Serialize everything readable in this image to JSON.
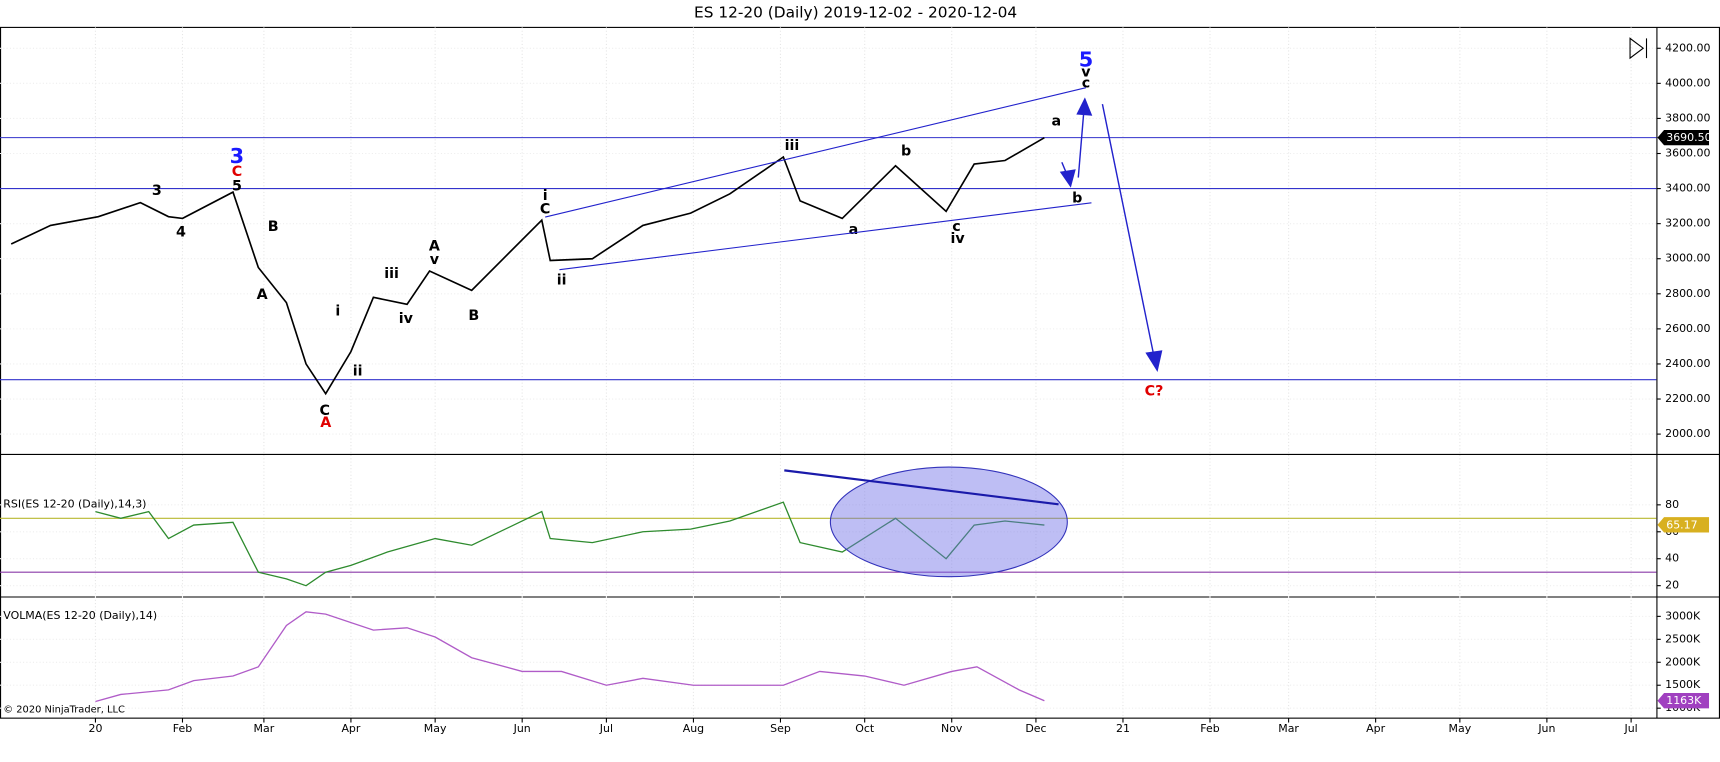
{
  "chart_data": [
    {
      "type": "line",
      "title": "ES 12-20 (Daily)  2019-12-02 - 2020-12-04",
      "color": "#000000",
      "x": [
        "2019-12-02",
        "2019-12-16",
        "2020-01-02",
        "2020-01-17",
        "2020-01-27",
        "2020-02-01",
        "2020-02-19",
        "2020-02-28",
        "2020-03-09",
        "2020-03-16",
        "2020-03-23",
        "2020-04-01",
        "2020-04-09",
        "2020-04-21",
        "2020-04-29",
        "2020-05-14",
        "2020-06-08",
        "2020-06-11",
        "2020-06-26",
        "2020-07-14",
        "2020-07-31",
        "2020-08-14",
        "2020-09-02",
        "2020-09-08",
        "2020-09-23",
        "2020-10-12",
        "2020-10-30",
        "2020-11-09",
        "2020-11-20",
        "2020-12-04"
      ],
      "values": [
        3084,
        3190,
        3240,
        3320,
        3240,
        3230,
        3380,
        2950,
        2750,
        2400,
        2230,
        2470,
        2780,
        2740,
        2930,
        2820,
        3220,
        2990,
        3000,
        3190,
        3260,
        3370,
        3580,
        3330,
        3230,
        3530,
        3270,
        3540,
        3560,
        3690
      ],
      "xlim": [
        "2019-11-28",
        "2021-07-10"
      ],
      "xticks": [
        {
          "value": "2020-01-01",
          "label": "20"
        },
        {
          "value": "2020-02-01",
          "label": "Feb"
        },
        {
          "value": "2020-03-01",
          "label": "Mar"
        },
        {
          "value": "2020-04-01",
          "label": "Apr"
        },
        {
          "value": "2020-05-01",
          "label": "May"
        },
        {
          "value": "2020-06-01",
          "label": "Jun"
        },
        {
          "value": "2020-07-01",
          "label": "Jul"
        },
        {
          "value": "2020-08-01",
          "label": "Aug"
        },
        {
          "value": "2020-09-01",
          "label": "Sep"
        },
        {
          "value": "2020-10-01",
          "label": "Oct"
        },
        {
          "value": "2020-11-01",
          "label": "Nov"
        },
        {
          "value": "2020-12-01",
          "label": "Dec"
        },
        {
          "value": "2021-01-01",
          "label": "21"
        },
        {
          "value": "2021-02-01",
          "label": "Feb"
        },
        {
          "value": "2021-03-01",
          "label": "Mar"
        },
        {
          "value": "2021-04-01",
          "label": "Apr"
        },
        {
          "value": "2021-05-01",
          "label": "May"
        },
        {
          "value": "2021-06-01",
          "label": "Jun"
        },
        {
          "value": "2021-07-01",
          "label": "Jul"
        }
      ],
      "ylim": [
        1887,
        4319
      ],
      "yticks": [
        {
          "value": 2000,
          "label": "2000.00"
        },
        {
          "value": 2200,
          "label": "2200.00"
        },
        {
          "value": 2400,
          "label": "2400.00"
        },
        {
          "value": 2600,
          "label": "2600.00"
        },
        {
          "value": 2800,
          "label": "2800.00"
        },
        {
          "value": 3000,
          "label": "3000.00"
        },
        {
          "value": 3200,
          "label": "3200.00"
        },
        {
          "value": 3400,
          "label": "3400.00"
        },
        {
          "value": 3600,
          "label": "3600.00"
        },
        {
          "value": 3800,
          "label": "3800.00"
        },
        {
          "value": 4000,
          "label": "4000.00"
        },
        {
          "value": 4200,
          "label": "4200.00"
        }
      ],
      "last": {
        "value": 3690.5,
        "label": "3690.50"
      },
      "hlines": [
        3400,
        2310
      ],
      "annotations": [
        {
          "text": "3",
          "color": "#000000"
        },
        {
          "text": "4",
          "color": "#000000"
        },
        {
          "text": "3",
          "color": "#1a1aff"
        },
        {
          "text": "C",
          "color": "#e00000"
        },
        {
          "text": "5",
          "color": "#000000"
        },
        {
          "text": "B",
          "color": "#000000"
        },
        {
          "text": "A",
          "color": "#000000"
        },
        {
          "text": "i",
          "color": "#000000"
        },
        {
          "text": "ii",
          "color": "#000000"
        },
        {
          "text": "C",
          "color": "#000000"
        },
        {
          "text": "A",
          "color": "#e00000"
        },
        {
          "text": "iii",
          "color": "#000000"
        },
        {
          "text": "iv",
          "color": "#000000"
        },
        {
          "text": "A",
          "color": "#000000"
        },
        {
          "text": "v",
          "color": "#000000"
        },
        {
          "text": "B",
          "color": "#000000"
        },
        {
          "text": "i",
          "color": "#000000"
        },
        {
          "text": "C",
          "color": "#000000"
        },
        {
          "text": "ii",
          "color": "#000000"
        },
        {
          "text": "iii",
          "color": "#000000"
        },
        {
          "text": "a",
          "color": "#000000"
        },
        {
          "text": "b",
          "color": "#000000"
        },
        {
          "text": "c",
          "color": "#000000"
        },
        {
          "text": "iv",
          "color": "#000000"
        },
        {
          "text": "a",
          "color": "#000000"
        },
        {
          "text": "b",
          "color": "#000000"
        },
        {
          "text": "5",
          "color": "#1a1aff"
        },
        {
          "text": "v",
          "color": "#000000"
        },
        {
          "text": "c",
          "color": "#000000"
        },
        {
          "text": "C?",
          "color": "#e00000"
        }
      ],
      "copyright": "© 2020 NinjaTrader, LLC"
    },
    {
      "type": "line",
      "label": "RSI(ES 12-20 (Daily),14,3)",
      "color": "#2e8b2e",
      "x": [
        "2020-01-01",
        "2020-01-10",
        "2020-01-20",
        "2020-01-27",
        "2020-02-05",
        "2020-02-19",
        "2020-02-28",
        "2020-03-09",
        "2020-03-16",
        "2020-03-23",
        "2020-04-01",
        "2020-04-14",
        "2020-05-01",
        "2020-05-14",
        "2020-06-08",
        "2020-06-11",
        "2020-06-26",
        "2020-07-14",
        "2020-07-31",
        "2020-08-14",
        "2020-09-02",
        "2020-09-08",
        "2020-09-23",
        "2020-10-12",
        "2020-10-30",
        "2020-11-09",
        "2020-11-20",
        "2020-12-04"
      ],
      "values": [
        75,
        70,
        75,
        55,
        65,
        67,
        30,
        25,
        20,
        30,
        35,
        45,
        55,
        50,
        75,
        55,
        52,
        60,
        62,
        68,
        82,
        52,
        45,
        70,
        40,
        65,
        68,
        65
      ],
      "ylim": [
        12,
        117
      ],
      "yticks": [
        20,
        40,
        60,
        80
      ],
      "hlines": [
        70,
        30
      ],
      "last": {
        "value": 65.17,
        "label": "65.17"
      }
    },
    {
      "type": "line",
      "label": "VOLMA(ES 12-20 (Daily),14)",
      "color": "#b05cc8",
      "x": [
        "2020-01-01",
        "2020-01-10",
        "2020-01-27",
        "2020-02-05",
        "2020-02-19",
        "2020-02-28",
        "2020-03-09",
        "2020-03-16",
        "2020-03-23",
        "2020-04-09",
        "2020-04-21",
        "2020-05-01",
        "2020-05-14",
        "2020-06-01",
        "2020-06-15",
        "2020-07-01",
        "2020-07-14",
        "2020-08-01",
        "2020-08-20",
        "2020-09-02",
        "2020-09-15",
        "2020-10-01",
        "2020-10-15",
        "2020-11-01",
        "2020-11-10",
        "2020-11-25",
        "2020-12-04"
      ],
      "values": [
        1145,
        1300,
        1400,
        1600,
        1700,
        1900,
        2800,
        3100,
        3050,
        2700,
        2750,
        2550,
        2100,
        1800,
        1800,
        1500,
        1650,
        1500,
        1500,
        1500,
        1800,
        1700,
        1500,
        1800,
        1900,
        1400,
        1163
      ],
      "ylim": [
        783,
        3410
      ],
      "yticks": [
        {
          "value": 1000,
          "label": "1000K"
        },
        {
          "value": 1500,
          "label": "1500K"
        },
        {
          "value": 2000,
          "label": "2000K"
        },
        {
          "value": 2500,
          "label": "2500K"
        },
        {
          "value": 3000,
          "label": "3000K"
        }
      ],
      "last": {
        "value": 1163,
        "label": "1163K"
      }
    }
  ]
}
